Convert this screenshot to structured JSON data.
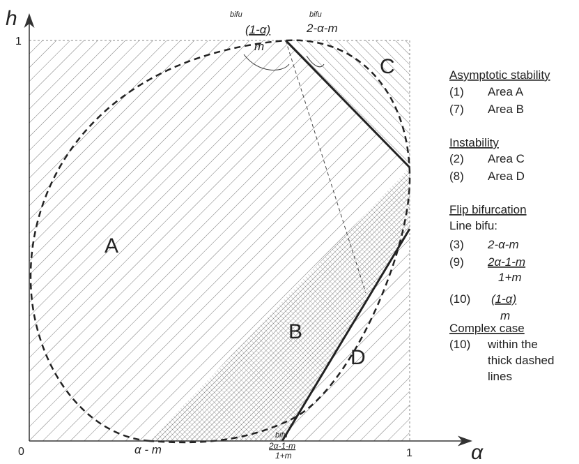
{
  "axes": {
    "x_label": "α",
    "y_label": "h",
    "origin": "0",
    "x_end": "1",
    "y_end": "1"
  },
  "regions": [
    "A",
    "B",
    "C",
    "D"
  ],
  "annotations": {
    "alpha_minus_m": "α - m",
    "bottom_bifu": {
      "tag": "bifu",
      "numerator": "2α-1-m",
      "denominator": "1+m"
    },
    "top_left_bifu": {
      "tag": "bifu",
      "numerator": "(1-α)",
      "denominator": "m"
    },
    "top_right_bifu": {
      "tag": "bifu",
      "expression": "2-α-m"
    }
  },
  "legend": {
    "asymptotic": {
      "heading": "Asymptotic stability",
      "items": [
        {
          "number": "(1)",
          "text": "Area A"
        },
        {
          "number": "(7)",
          "text": "Area B"
        }
      ]
    },
    "instability": {
      "heading": "Instability",
      "items": [
        {
          "number": "(2)",
          "text": "Area C"
        },
        {
          "number": "(8)",
          "text": "Area D"
        }
      ]
    },
    "flip": {
      "heading": "Flip bifurcation",
      "subheading": "Line bifu:",
      "items": [
        {
          "number": "(3)",
          "expression": "2-α-m"
        },
        {
          "number": "(9)",
          "numerator": "2α-1-m",
          "denominator": "1+m"
        },
        {
          "number": "(10)",
          "numerator": "(1-α)",
          "denominator": "m"
        }
      ]
    },
    "complex": {
      "heading": "Complex case",
      "number": "(10)",
      "lines": [
        "within the",
        "thick dashed",
        "lines"
      ]
    }
  }
}
